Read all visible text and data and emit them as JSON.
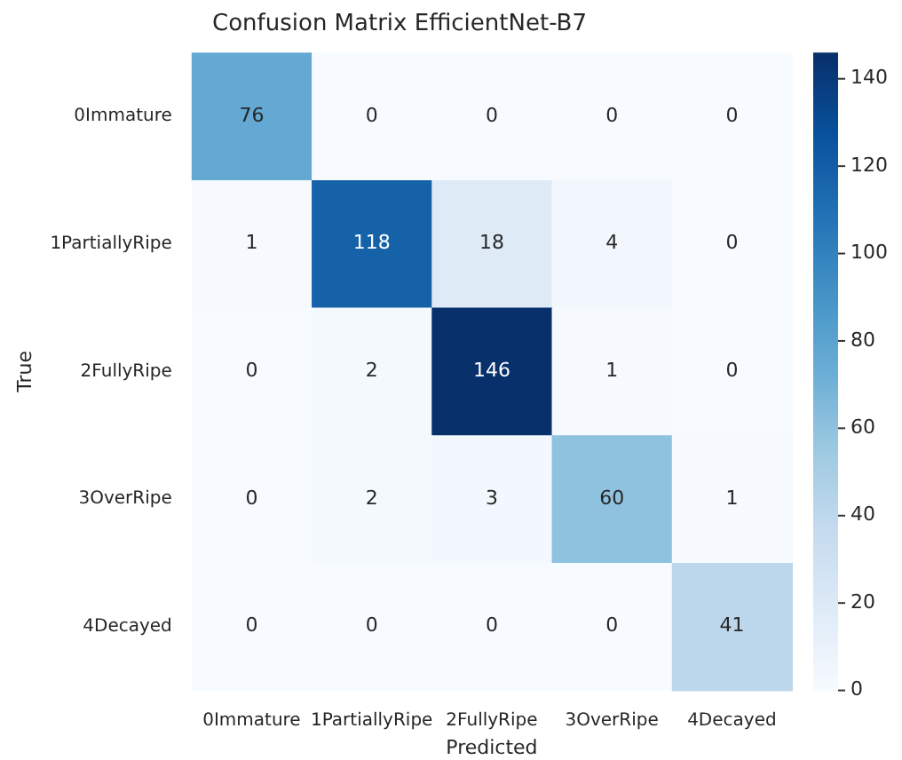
{
  "chart_data": {
    "type": "heatmap",
    "title": "Confusion Matrix EfficientNet-B7",
    "xlabel": "Predicted",
    "ylabel": "True",
    "categories": [
      "0Immature",
      "1PartiallyRipe",
      "2FullyRipe",
      "3OverRipe",
      "4Decayed"
    ],
    "y_categories": [
      "0Immature",
      "1PartiallyRipe",
      "2FullyRipe",
      "3OverRipe",
      "4Decayed"
    ],
    "cells": [
      [
        76,
        0,
        0,
        0,
        0
      ],
      [
        1,
        118,
        18,
        4,
        0
      ],
      [
        0,
        2,
        146,
        1,
        0
      ],
      [
        0,
        2,
        3,
        60,
        1
      ],
      [
        0,
        0,
        0,
        0,
        41
      ]
    ],
    "clim": [
      0,
      146
    ],
    "cticks": [
      0,
      20,
      40,
      60,
      80,
      100,
      120,
      140
    ],
    "data_labels": true
  }
}
